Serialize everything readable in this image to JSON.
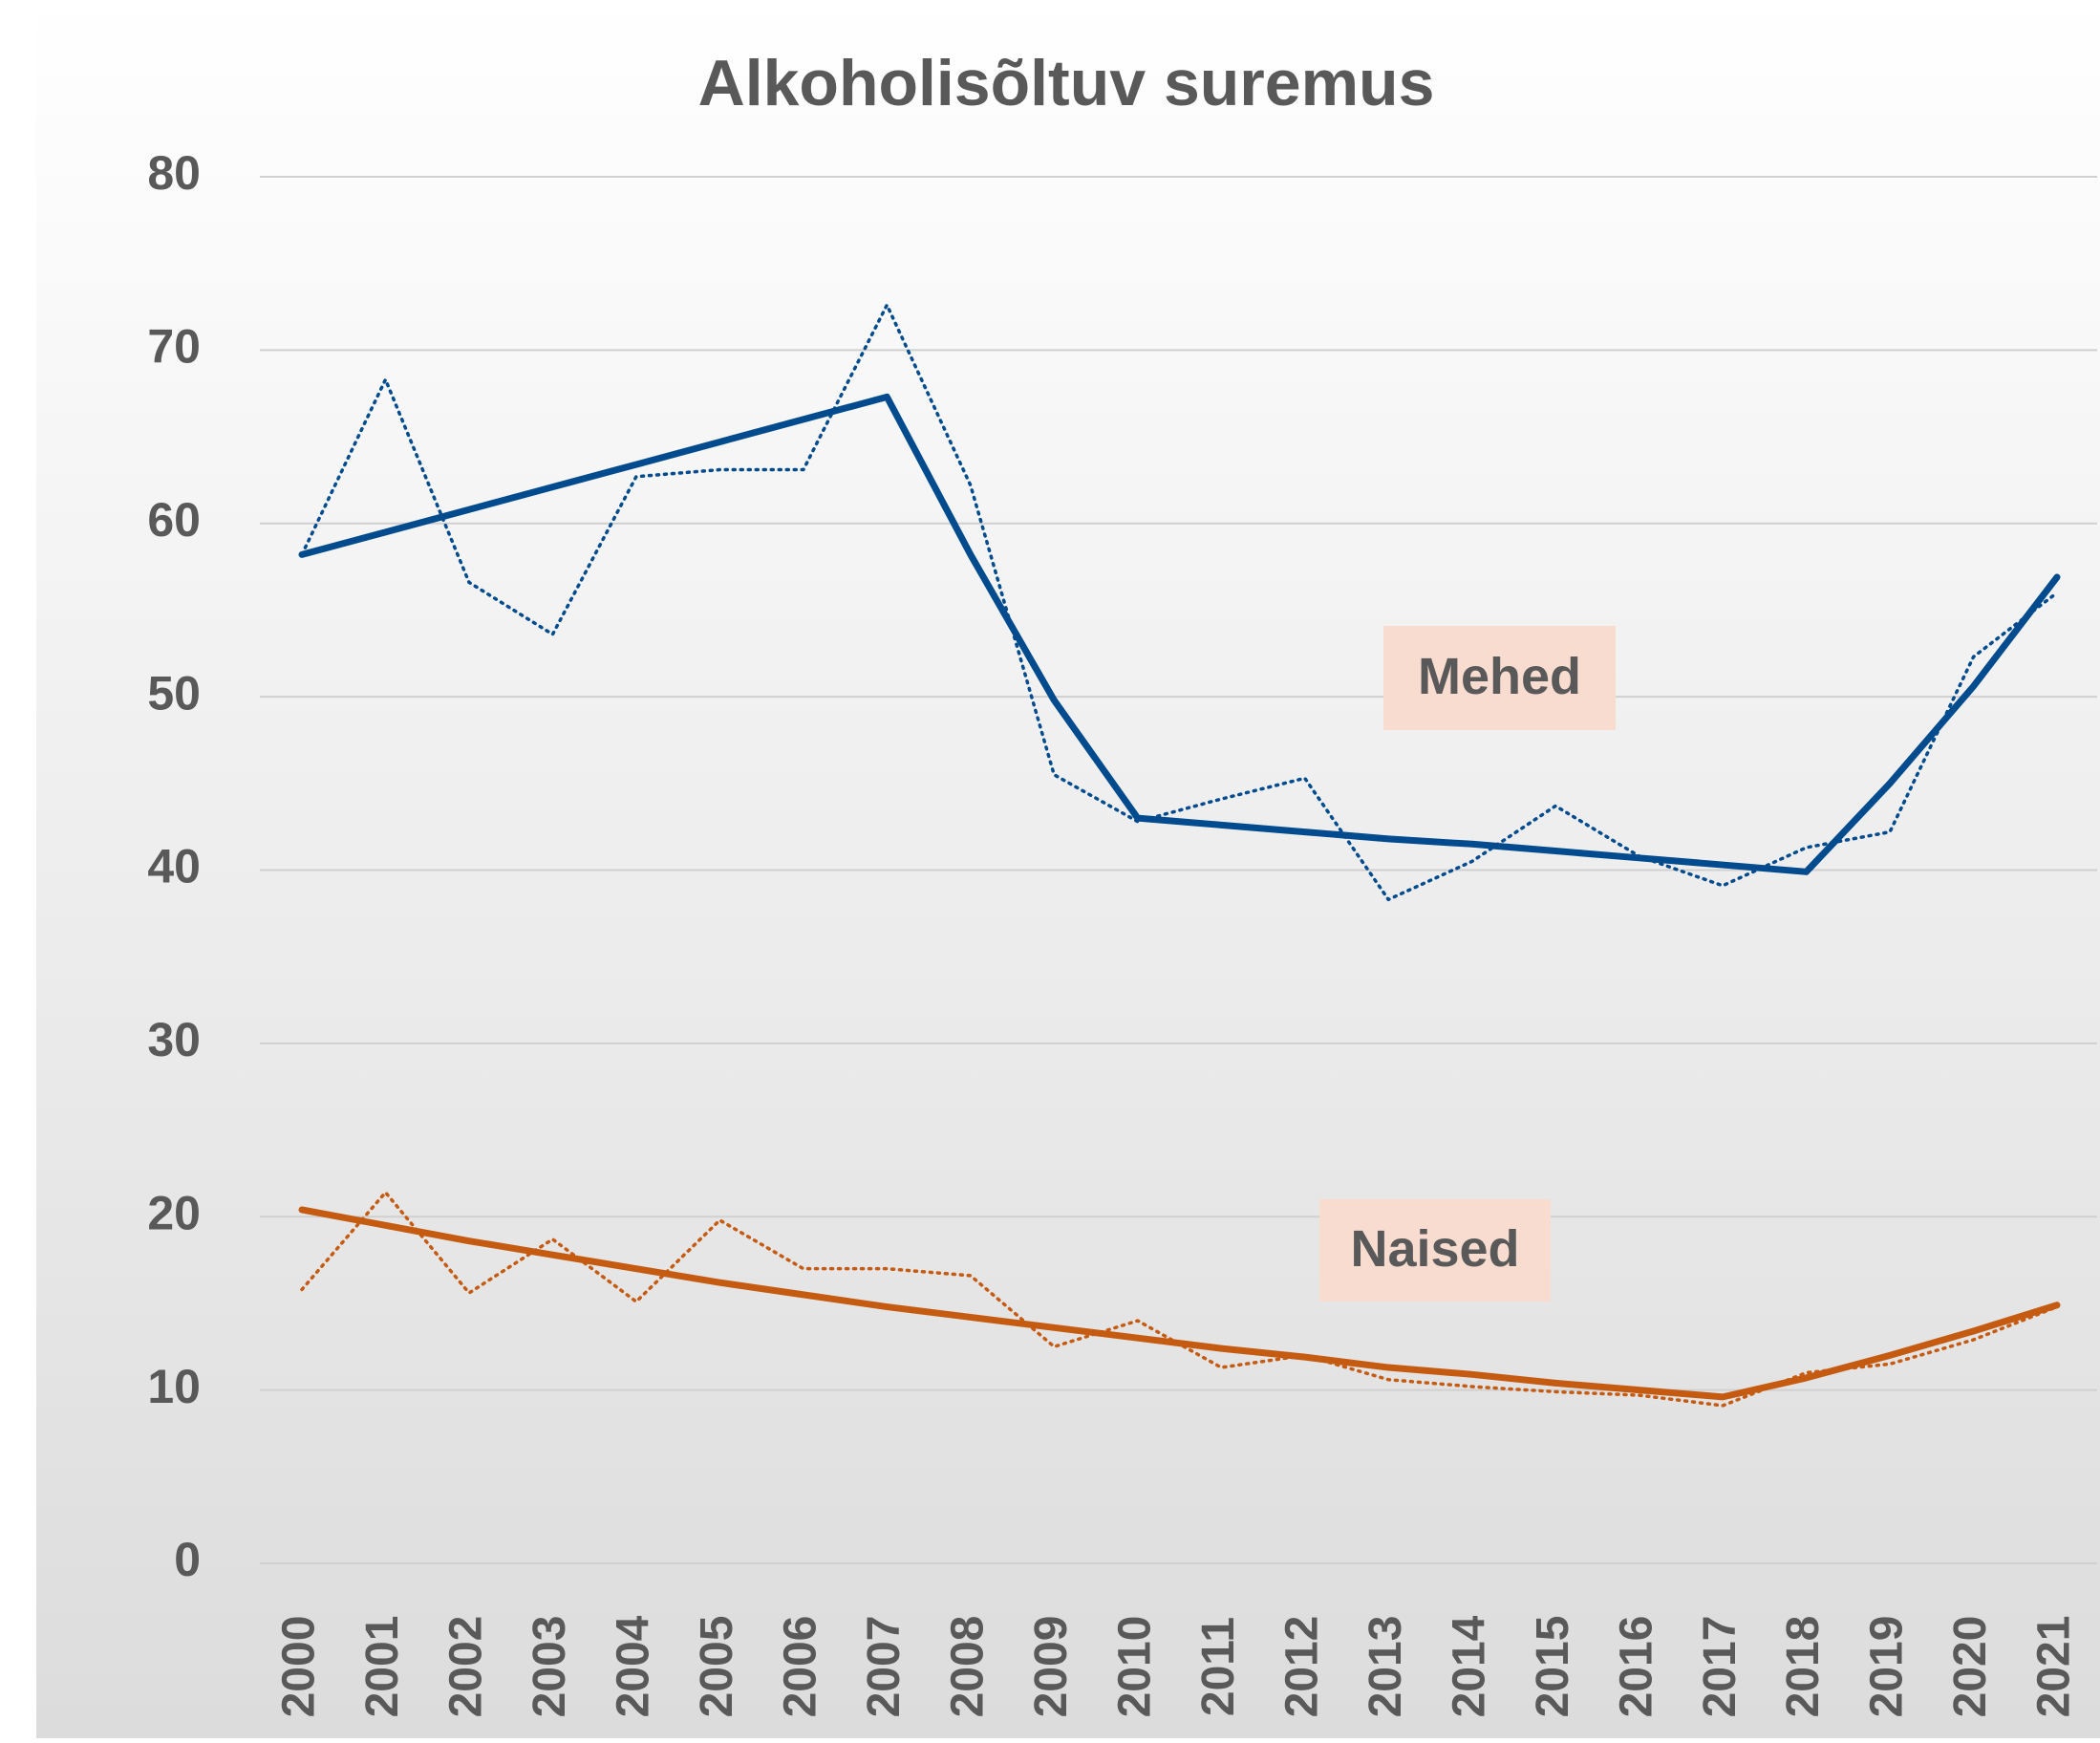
{
  "chart_data": {
    "type": "line",
    "title": "Alkoholisõltuv suremus",
    "categories": [
      "2000",
      "2001",
      "2002",
      "2003",
      "2004",
      "2005",
      "2006",
      "2007",
      "2008",
      "2009",
      "2010",
      "2011",
      "2012",
      "2013",
      "2014",
      "2015",
      "2016",
      "2017",
      "2018",
      "2019",
      "2020",
      "2021"
    ],
    "series": [
      {
        "name": "Mehed",
        "color": "#004b8d",
        "values": [
          58.2,
          68.3,
          56.6,
          53.6,
          62.7,
          63.1,
          63.1,
          72.6,
          62.2,
          45.5,
          42.8,
          44.1,
          45.3,
          38.3,
          40.5,
          43.7,
          40.8,
          39.1,
          41.3,
          42.2,
          52.3,
          56.0
        ],
        "trend": [
          58.2,
          59.5,
          60.8,
          62.1,
          63.4,
          64.7,
          66.0,
          67.3,
          58.2,
          49.8,
          43.0,
          42.6,
          42.2,
          41.8,
          41.5,
          41.1,
          40.7,
          40.3,
          39.9,
          45.0,
          50.6,
          56.9
        ]
      },
      {
        "name": "Naised",
        "color": "#c55a11",
        "values": [
          15.8,
          21.4,
          15.6,
          18.7,
          15.1,
          19.8,
          17.0,
          17.0,
          16.6,
          12.5,
          14.0,
          11.3,
          12.0,
          10.6,
          10.2,
          9.9,
          9.7,
          9.1,
          11.0,
          11.5,
          12.9,
          14.8
        ],
        "trend": [
          20.4,
          19.5,
          18.6,
          17.8,
          17.0,
          16.2,
          15.5,
          14.8,
          14.2,
          13.6,
          13.0,
          12.4,
          11.9,
          11.3,
          10.9,
          10.4,
          10.0,
          9.6,
          10.7,
          12.0,
          13.4,
          14.9
        ]
      }
    ],
    "ylim": [
      0,
      80
    ],
    "yticks": [
      0,
      10,
      20,
      30,
      40,
      50,
      60,
      70,
      80
    ],
    "grid": true
  }
}
